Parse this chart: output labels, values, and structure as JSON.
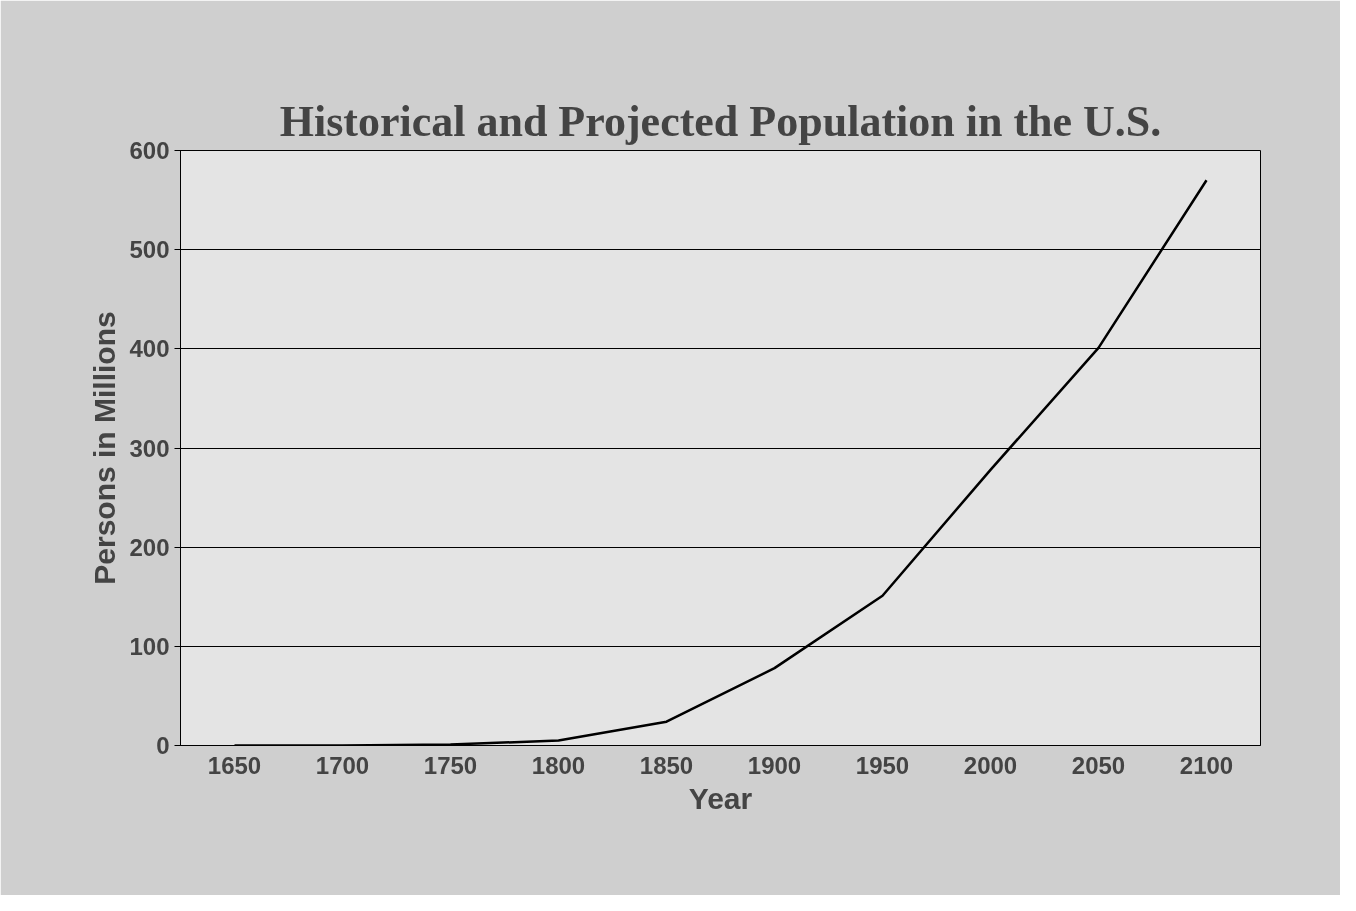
{
  "chart_data": {
    "type": "line",
    "title": "Historical and Projected Population in the U.S.",
    "xlabel": "Year",
    "ylabel": "Persons in Millions",
    "categories": [
      "1650",
      "1700",
      "1750",
      "1800",
      "1850",
      "1900",
      "1950",
      "2000",
      "2050",
      "2100"
    ],
    "series": [
      {
        "color": "#000000",
        "values": [
          0,
          0,
          1,
          5,
          24,
          78,
          151,
          278,
          401,
          570
        ]
      }
    ],
    "ylim": [
      0,
      600
    ],
    "yticks": [
      0,
      100,
      200,
      300,
      400,
      500,
      600
    ],
    "grid": "y",
    "marker": "none",
    "line_style": "solid"
  }
}
